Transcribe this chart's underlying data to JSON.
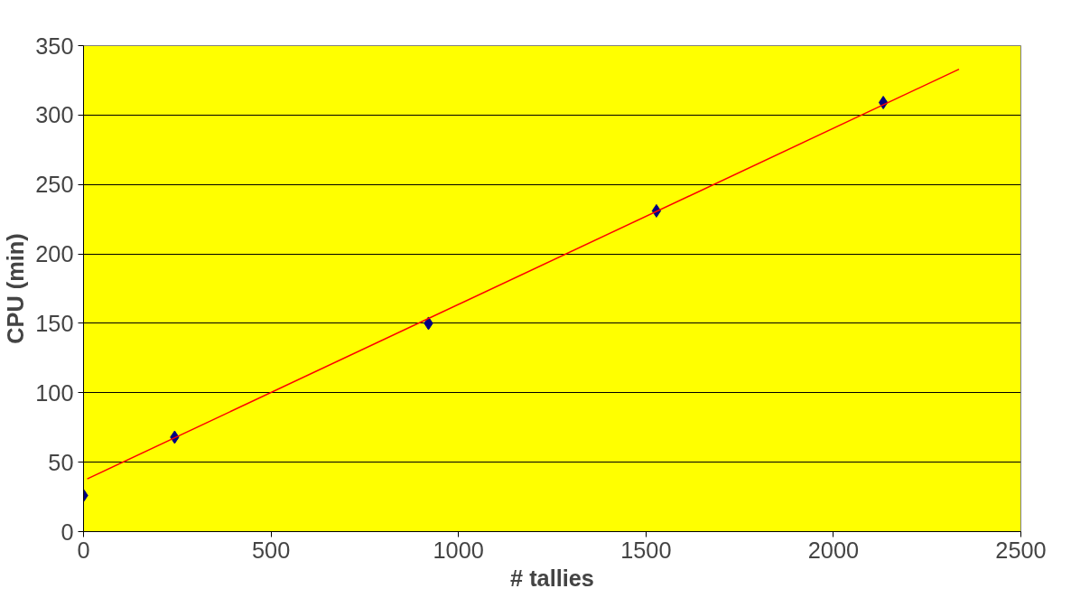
{
  "chart_data": {
    "type": "scatter",
    "xlabel": "# tallies",
    "ylabel": "CPU (min)",
    "xlim": [
      0,
      2500
    ],
    "xticks": [
      0,
      500,
      1000,
      1500,
      2000,
      2500
    ],
    "ylim": [
      0,
      350
    ],
    "yticks": [
      0,
      50,
      100,
      150,
      200,
      250,
      300,
      350
    ],
    "grid": "y",
    "marker": "diamond",
    "series": [
      {
        "color": "#000080",
        "x": [
          0,
          243,
          920,
          1528,
          2133
        ],
        "values": [
          26,
          68,
          150,
          231,
          309
        ]
      },
      {
        "type": "line",
        "color": "#ff0000",
        "x": [
          10,
          2335
        ],
        "values": [
          38,
          333
        ],
        "marker": "none",
        "line_style": "solid"
      }
    ]
  }
}
